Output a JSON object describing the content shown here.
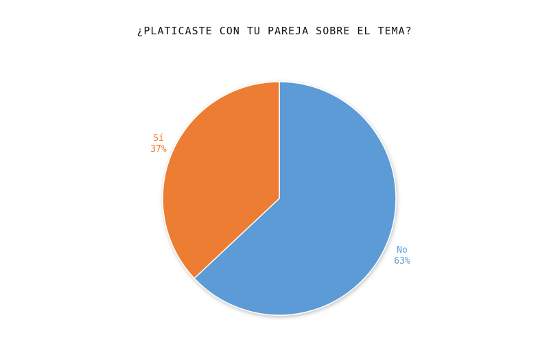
{
  "chart_data": {
    "type": "pie",
    "title": "¿PLATICASTE CON TU PAREJA SOBRE EL TEMA?",
    "slices": [
      {
        "label": "No",
        "value": 63,
        "percent_label": "63%",
        "color": "#5b9bd5"
      },
      {
        "label": "Sí",
        "value": 37,
        "percent_label": "37%",
        "color": "#ed7d31"
      }
    ],
    "start": "12 o'clock",
    "direction": "clockwise",
    "legend": "none"
  }
}
